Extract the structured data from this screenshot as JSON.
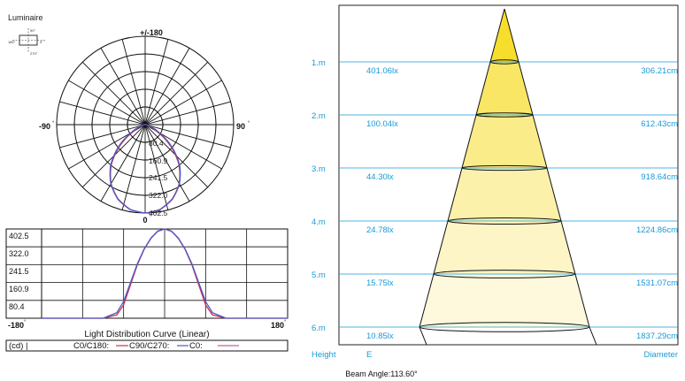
{
  "luminaire": {
    "label": "Luminaire",
    "icon_labels": {
      "top": "90°",
      "left": "180°",
      "right": "0°",
      "bottom": "270°"
    }
  },
  "polar": {
    "top_label": "+/-180",
    "left_label": "-90",
    "right_label": "90",
    "bottom_label": "0",
    "degree_mark": "°",
    "ring_labels": [
      "80.4",
      "160.9",
      "241.5",
      "322.0",
      "402.5"
    ],
    "max": 402.5
  },
  "linear": {
    "y_ticks": [
      "402.5",
      "322.0",
      "241.5",
      "160.9",
      "80.4"
    ],
    "x_left": "-180",
    "x_right": "180",
    "degree_mark": "°",
    "title": "Light Distribution Curve (Linear)",
    "legend": {
      "unit": "(cd) |",
      "c0c180": "C0/C180:",
      "c90c270": "C90/C270:",
      "c0": "C0:"
    }
  },
  "colors": {
    "c0c180": "#d0304a",
    "c90c270": "#4a5ac8",
    "c0": "#c060a0",
    "cyan_text": "#1a9ad6",
    "beam_rows": [
      "#f7de2c",
      "#fae665",
      "#fbec8a",
      "#fcf1aa",
      "#fdf5c6",
      "#fef9dd"
    ]
  },
  "chart_data": [
    {
      "type": "line",
      "title": "Light Distribution Curve (Linear)",
      "xlabel": "",
      "ylabel": "(cd)",
      "xlim": [
        -180,
        180
      ],
      "ylim": [
        0,
        402.5
      ],
      "x": [
        -180,
        -120,
        -90,
        -70,
        -60,
        -50,
        -40,
        -30,
        -20,
        -10,
        0,
        10,
        20,
        30,
        40,
        50,
        60,
        70,
        90,
        120,
        180
      ],
      "series": [
        {
          "name": "C0/C180:",
          "values": [
            0,
            0,
            0,
            15,
            60,
            150,
            240,
            310,
            360,
            392,
            402.5,
            392,
            360,
            310,
            240,
            150,
            60,
            15,
            0,
            0,
            0
          ]
        },
        {
          "name": "C90/C270:",
          "values": [
            0,
            0,
            0,
            25,
            75,
            160,
            245,
            312,
            362,
            393,
            402.5,
            393,
            362,
            312,
            245,
            160,
            75,
            25,
            0,
            0,
            0
          ]
        }
      ]
    },
    {
      "type": "table",
      "title": "",
      "beam_angle_label": "Beam Angle:113.60°",
      "column_labels": {
        "height": "Height",
        "illuminance": "E",
        "diameter": "Diameter"
      },
      "rows": [
        {
          "height": "1.m",
          "illuminance": "401.06lx",
          "diameter": "306.21cm"
        },
        {
          "height": "2.m",
          "illuminance": "100.04lx",
          "diameter": "612.43cm"
        },
        {
          "height": "3.m",
          "illuminance": "44.30lx",
          "diameter": "918.64cm"
        },
        {
          "height": "4.m",
          "illuminance": "24.78lx",
          "diameter": "1224.86cm"
        },
        {
          "height": "5.m",
          "illuminance": "15.75lx",
          "diameter": "1531.07cm"
        },
        {
          "height": "6.m",
          "illuminance": "10.85lx",
          "diameter": "1837.29cm"
        }
      ]
    }
  ]
}
